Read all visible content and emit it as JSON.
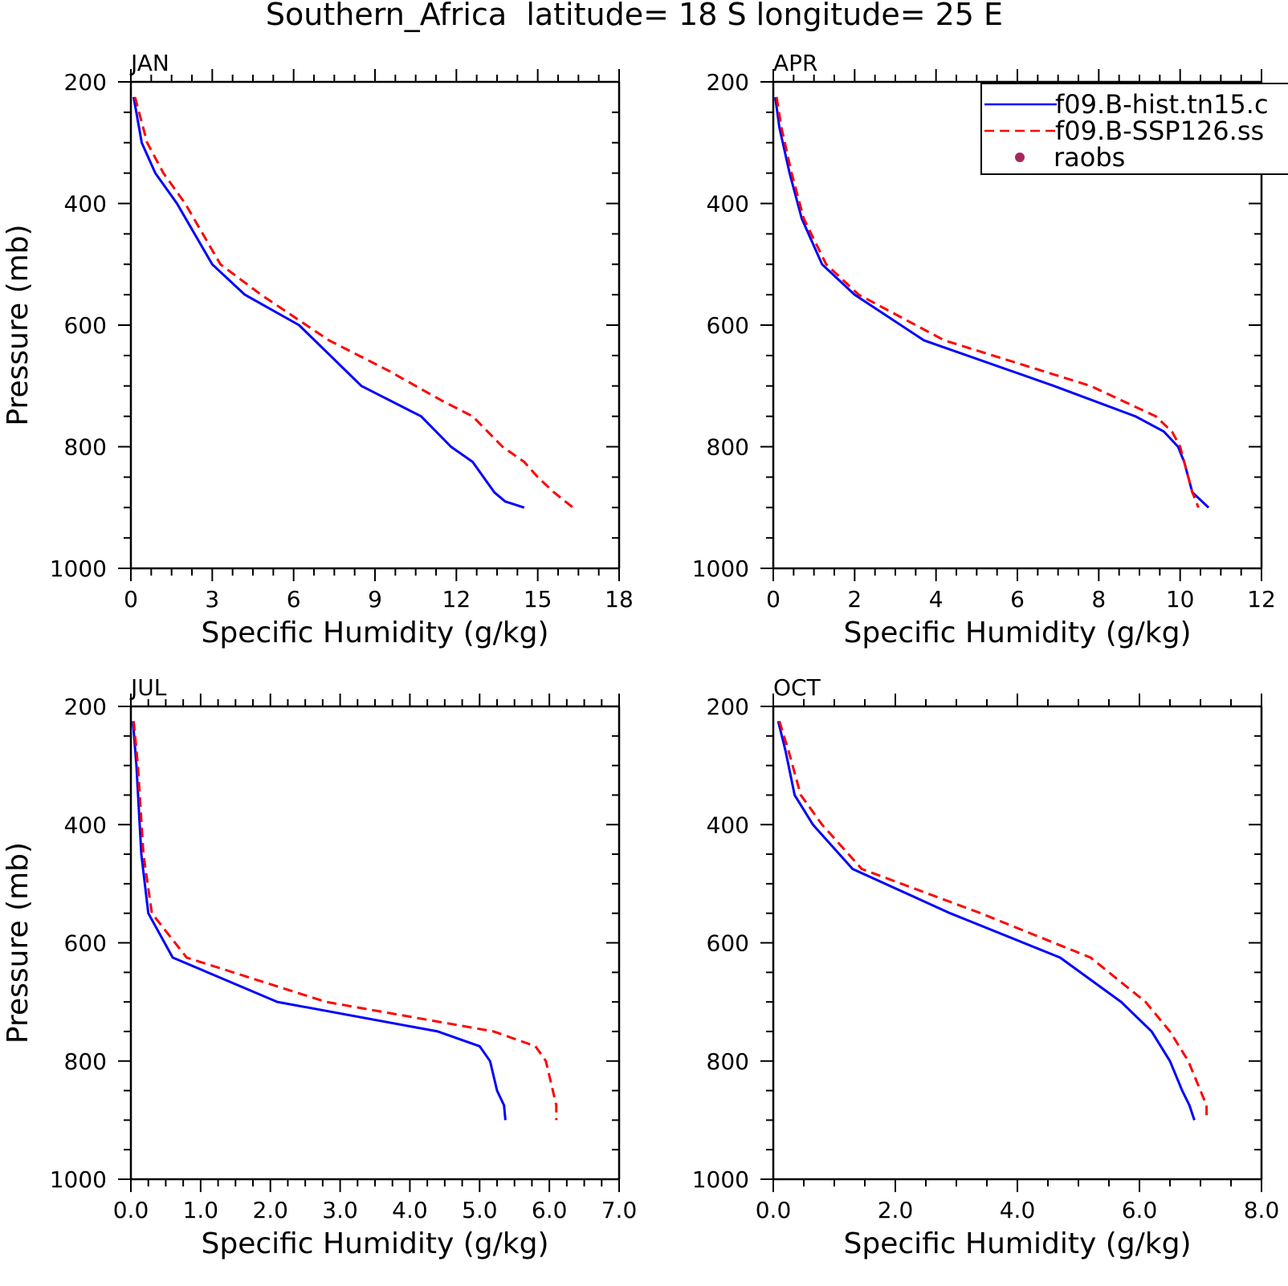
{
  "figure": {
    "title": "Southern_Africa  latitude= 18 S longitude= 25 E"
  },
  "legend": {
    "entries": [
      {
        "label": "f09.B-hist.tn15.c",
        "color": "#0000ff",
        "style": "solid"
      },
      {
        "label": "f09.B-SSP126.ss",
        "color": "#ff0000",
        "style": "dashed"
      },
      {
        "label": "raobs",
        "color": "#a8285a",
        "style": "dot"
      }
    ]
  },
  "colors": {
    "hist": "#0000ff",
    "ssp": "#ff0000",
    "raobs": "#a8285a"
  },
  "chart_data": [
    {
      "type": "line",
      "title": "JAN",
      "xlabel": "Specific Humidity (g/kg)",
      "ylabel": "Pressure (mb)",
      "xlim": [
        0,
        18
      ],
      "ylim": [
        1000,
        200
      ],
      "xticks": [
        "0",
        "3",
        "6",
        "9",
        "12",
        "15",
        "18"
      ],
      "yticks": [
        "200",
        "400",
        "600",
        "800",
        "1000"
      ],
      "series": [
        {
          "name": "f09.B-hist.tn15.c",
          "style": "solid",
          "x": [
            0.1,
            0.4,
            0.9,
            1.7,
            3.0,
            4.2,
            6.2,
            8.5,
            10.7,
            11.8,
            12.6,
            13.0,
            13.4,
            13.8,
            14.5
          ],
          "y": [
            225,
            300,
            350,
            400,
            500,
            550,
            600,
            700,
            750,
            800,
            825,
            850,
            875,
            890,
            900
          ]
        },
        {
          "name": "f09.B-SSP126.ss",
          "style": "dashed",
          "x": [
            0.15,
            0.6,
            1.2,
            2.0,
            3.3,
            4.8,
            7.3,
            9.5,
            11.5,
            12.6,
            13.7,
            14.5,
            15.0,
            15.6,
            16.3
          ],
          "y": [
            225,
            300,
            350,
            400,
            500,
            550,
            625,
            675,
            725,
            750,
            800,
            825,
            850,
            875,
            900
          ]
        }
      ]
    },
    {
      "type": "line",
      "title": "APR",
      "xlabel": "Specific Humidity (g/kg)",
      "ylabel": "",
      "xlim": [
        0,
        12
      ],
      "ylim": [
        1000,
        200
      ],
      "xticks": [
        "0",
        "2",
        "4",
        "6",
        "8",
        "10",
        "12"
      ],
      "yticks": [
        "200",
        "400",
        "600",
        "800",
        "1000"
      ],
      "series": [
        {
          "name": "f09.B-hist.tn15.c",
          "style": "solid",
          "x": [
            0.05,
            0.15,
            0.4,
            0.7,
            1.2,
            2.0,
            3.7,
            6.9,
            8.9,
            9.6,
            9.95,
            10.1,
            10.3,
            10.7
          ],
          "y": [
            225,
            275,
            350,
            425,
            500,
            550,
            625,
            700,
            750,
            775,
            800,
            825,
            875,
            900
          ]
        },
        {
          "name": "f09.B-SSP126.ss",
          "style": "dashed",
          "x": [
            0.08,
            0.2,
            0.45,
            0.75,
            1.3,
            2.1,
            4.2,
            7.8,
            9.4,
            9.8,
            10.0,
            10.2,
            10.3,
            10.45
          ],
          "y": [
            225,
            275,
            350,
            425,
            500,
            550,
            625,
            700,
            750,
            775,
            800,
            850,
            875,
            900
          ]
        }
      ]
    },
    {
      "type": "line",
      "title": "JUL",
      "xlabel": "Specific Humidity (g/kg)",
      "ylabel": "Pressure (mb)",
      "xlim": [
        0,
        7
      ],
      "ylim": [
        1000,
        200
      ],
      "xticks": [
        "0.0",
        "1.0",
        "2.0",
        "3.0",
        "4.0",
        "5.0",
        "6.0",
        "7.0"
      ],
      "yticks": [
        "200",
        "400",
        "600",
        "800",
        "1000"
      ],
      "series": [
        {
          "name": "f09.B-hist.tn15.c",
          "style": "solid",
          "x": [
            0.03,
            0.08,
            0.15,
            0.25,
            0.6,
            2.1,
            4.4,
            5.0,
            5.15,
            5.25,
            5.35,
            5.37
          ],
          "y": [
            225,
            300,
            450,
            550,
            625,
            700,
            750,
            775,
            800,
            850,
            875,
            900
          ]
        },
        {
          "name": "f09.B-SSP126.ss",
          "style": "dashed",
          "x": [
            0.04,
            0.1,
            0.18,
            0.3,
            0.8,
            2.8,
            5.2,
            5.8,
            5.95,
            6.05,
            6.1,
            6.1
          ],
          "y": [
            225,
            300,
            450,
            550,
            625,
            700,
            750,
            775,
            800,
            850,
            875,
            900
          ]
        }
      ]
    },
    {
      "type": "line",
      "title": "OCT",
      "xlabel": "Specific Humidity (g/kg)",
      "ylabel": "",
      "xlim": [
        0,
        8
      ],
      "ylim": [
        1000,
        200
      ],
      "xticks": [
        "0.0",
        "2.0",
        "4.0",
        "6.0",
        "8.0"
      ],
      "yticks": [
        "200",
        "400",
        "600",
        "800",
        "1000"
      ],
      "series": [
        {
          "name": "f09.B-hist.tn15.c",
          "style": "solid",
          "x": [
            0.08,
            0.2,
            0.35,
            0.65,
            1.3,
            2.9,
            4.7,
            5.7,
            6.2,
            6.5,
            6.7,
            6.82,
            6.9
          ],
          "y": [
            225,
            275,
            350,
            400,
            475,
            550,
            625,
            700,
            750,
            800,
            850,
            875,
            900
          ]
        },
        {
          "name": "f09.B-SSP126.ss",
          "style": "dashed",
          "x": [
            0.1,
            0.25,
            0.45,
            0.8,
            1.45,
            3.4,
            5.2,
            6.1,
            6.5,
            6.8,
            7.0,
            7.1,
            7.1
          ],
          "y": [
            225,
            275,
            350,
            400,
            475,
            550,
            625,
            700,
            750,
            800,
            850,
            875,
            900
          ]
        }
      ]
    }
  ]
}
